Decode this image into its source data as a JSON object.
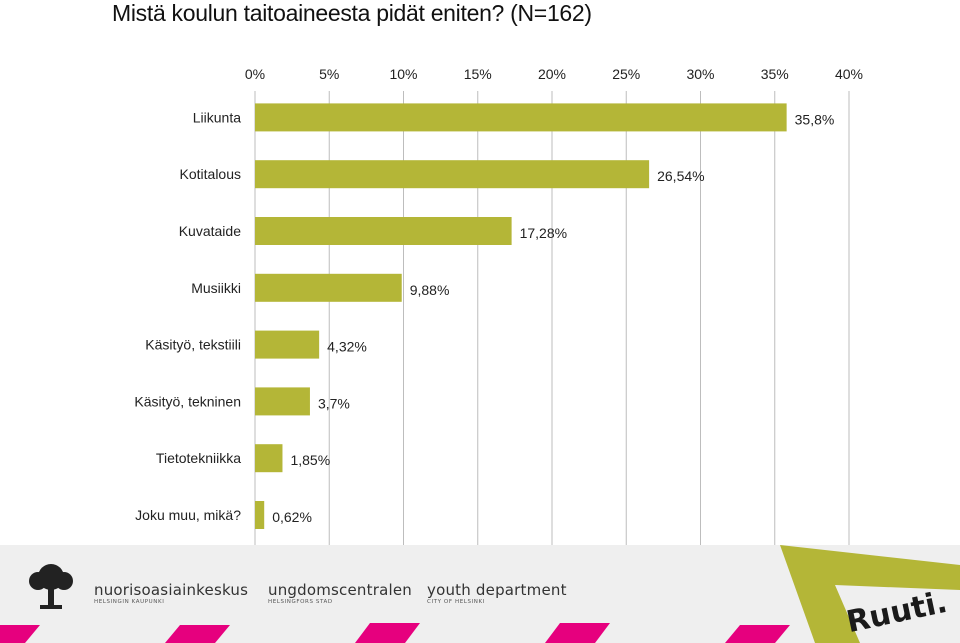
{
  "chart_data": {
    "type": "bar",
    "orientation": "horizontal",
    "title": "Mistä koulun taitoaineesta pidät eniten? (N=162)",
    "categories": [
      "Liikunta",
      "Kotitalous",
      "Kuvataide",
      "Musiikki",
      "Käsityö, tekstiili",
      "Käsityö, tekninen",
      "Tietotekniikka",
      "Joku muu, mikä?"
    ],
    "values": [
      35.8,
      26.54,
      17.28,
      9.88,
      4.32,
      3.7,
      1.85,
      0.62
    ],
    "value_labels": [
      "35,8%",
      "26,54%",
      "17,28%",
      "9,88%",
      "4,32%",
      "3,7%",
      "1,85%",
      "0,62%"
    ],
    "xlim": [
      0,
      40
    ],
    "x_ticks": [
      "0%",
      "5%",
      "10%",
      "15%",
      "20%",
      "25%",
      "30%",
      "35%",
      "40%"
    ],
    "x_axis_position": "top",
    "grid": true,
    "bar_color": "#b4b637",
    "grid_color": "#bdbdbd"
  },
  "footer": {
    "brands": [
      {
        "name": "nuorisoasiainkeskus",
        "sub": "HELSINGIN KAUPUNKI"
      },
      {
        "name": "ungdomscentralen",
        "sub": "HELSINGFORS STAD"
      },
      {
        "name": "youth department",
        "sub": "CITY OF HELSINKI"
      }
    ],
    "logo_text": "Ruuti.",
    "accent_color": "#e6007e",
    "stripe_color": "#b4b637"
  }
}
